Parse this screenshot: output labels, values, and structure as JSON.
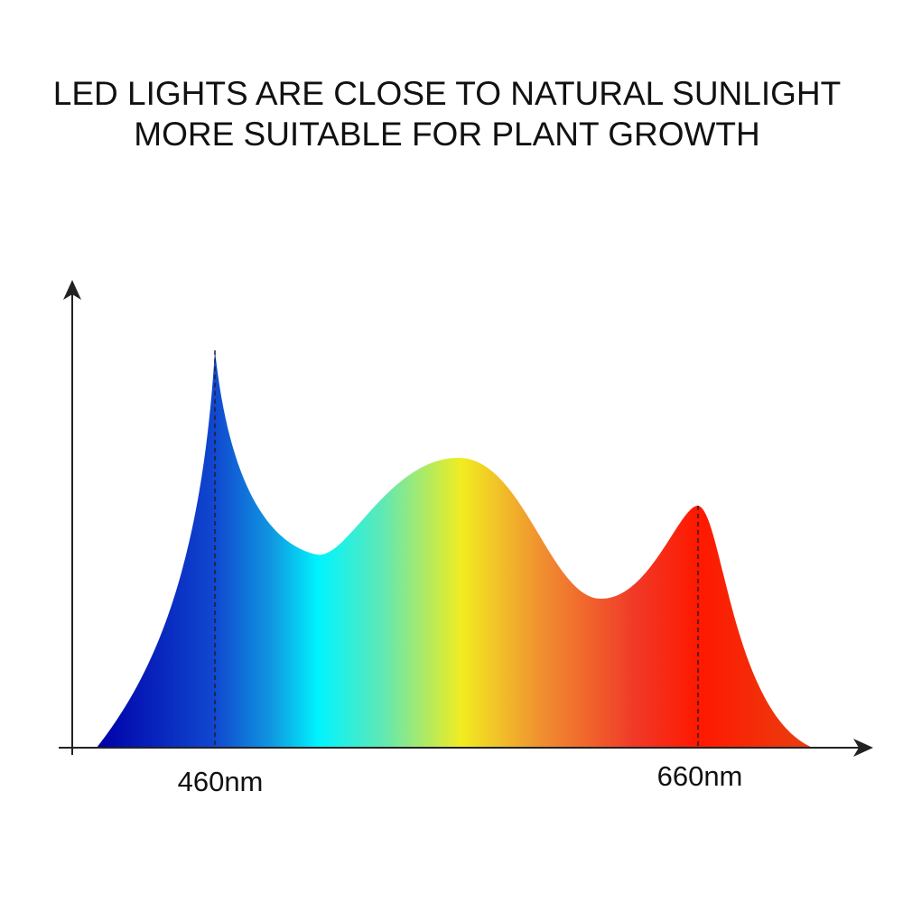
{
  "title": [
    "LED LIGHTS ARE CLOSE TO NATURAL SUNLIGHT",
    "MORE SUITABLE FOR PLANT GROWTH"
  ],
  "labels": [
    "460nm",
    "660nm"
  ]
}
